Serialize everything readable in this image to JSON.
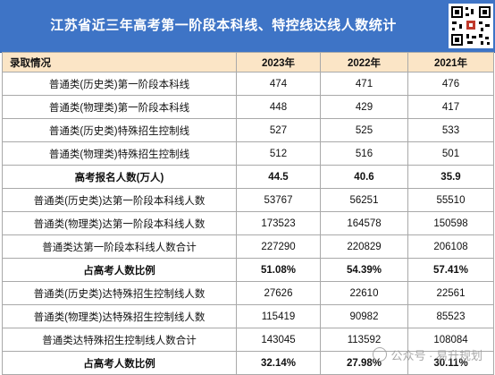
{
  "title": "江苏省近三年高考第一阶段本科线、特控线达线人数统计",
  "header": {
    "label": "录取情况",
    "years": [
      "2023年",
      "2022年",
      "2021年"
    ]
  },
  "rows": [
    {
      "label": "普通类(历史类)第一阶段本科线",
      "v": [
        "474",
        "471",
        "476"
      ],
      "bold": false
    },
    {
      "label": "普通类(物理类)第一阶段本科线",
      "v": [
        "448",
        "429",
        "417"
      ],
      "bold": false
    },
    {
      "label": "普通类(历史类)特殊招生控制线",
      "v": [
        "527",
        "525",
        "533"
      ],
      "bold": false
    },
    {
      "label": "普通类(物理类)特殊招生控制线",
      "v": [
        "512",
        "516",
        "501"
      ],
      "bold": false
    },
    {
      "label": "高考报名人数(万人)",
      "v": [
        "44.5",
        "40.6",
        "35.9"
      ],
      "bold": true
    },
    {
      "label": "普通类(历史类)达第一阶段本科线人数",
      "v": [
        "53767",
        "56251",
        "55510"
      ],
      "bold": false
    },
    {
      "label": "普通类(物理类)达第一阶段本科线人数",
      "v": [
        "173523",
        "164578",
        "150598"
      ],
      "bold": false
    },
    {
      "label": "普通类达第一阶段本科线人数合计",
      "v": [
        "227290",
        "220829",
        "206108"
      ],
      "bold": false
    },
    {
      "label": "占高考人数比例",
      "v": [
        "51.08%",
        "54.39%",
        "57.41%"
      ],
      "bold": true
    },
    {
      "label": "普通类(历史类)达特殊招生控制线人数",
      "v": [
        "27626",
        "22610",
        "22561"
      ],
      "bold": false
    },
    {
      "label": "普通类(物理类)达特殊招生控制线人数",
      "v": [
        "115419",
        "90982",
        "85523"
      ],
      "bold": false
    },
    {
      "label": "普通类达特殊招生控制线人数合计",
      "v": [
        "143045",
        "113592",
        "108084"
      ],
      "bold": false
    },
    {
      "label": "占高考人数比例",
      "v": [
        "32.14%",
        "27.98%",
        "30.11%"
      ],
      "bold": true
    }
  ],
  "watermark": "公众号 · 易升规划",
  "icons": {
    "qr": "qr-code-icon",
    "watermark": "wechat-icon"
  }
}
